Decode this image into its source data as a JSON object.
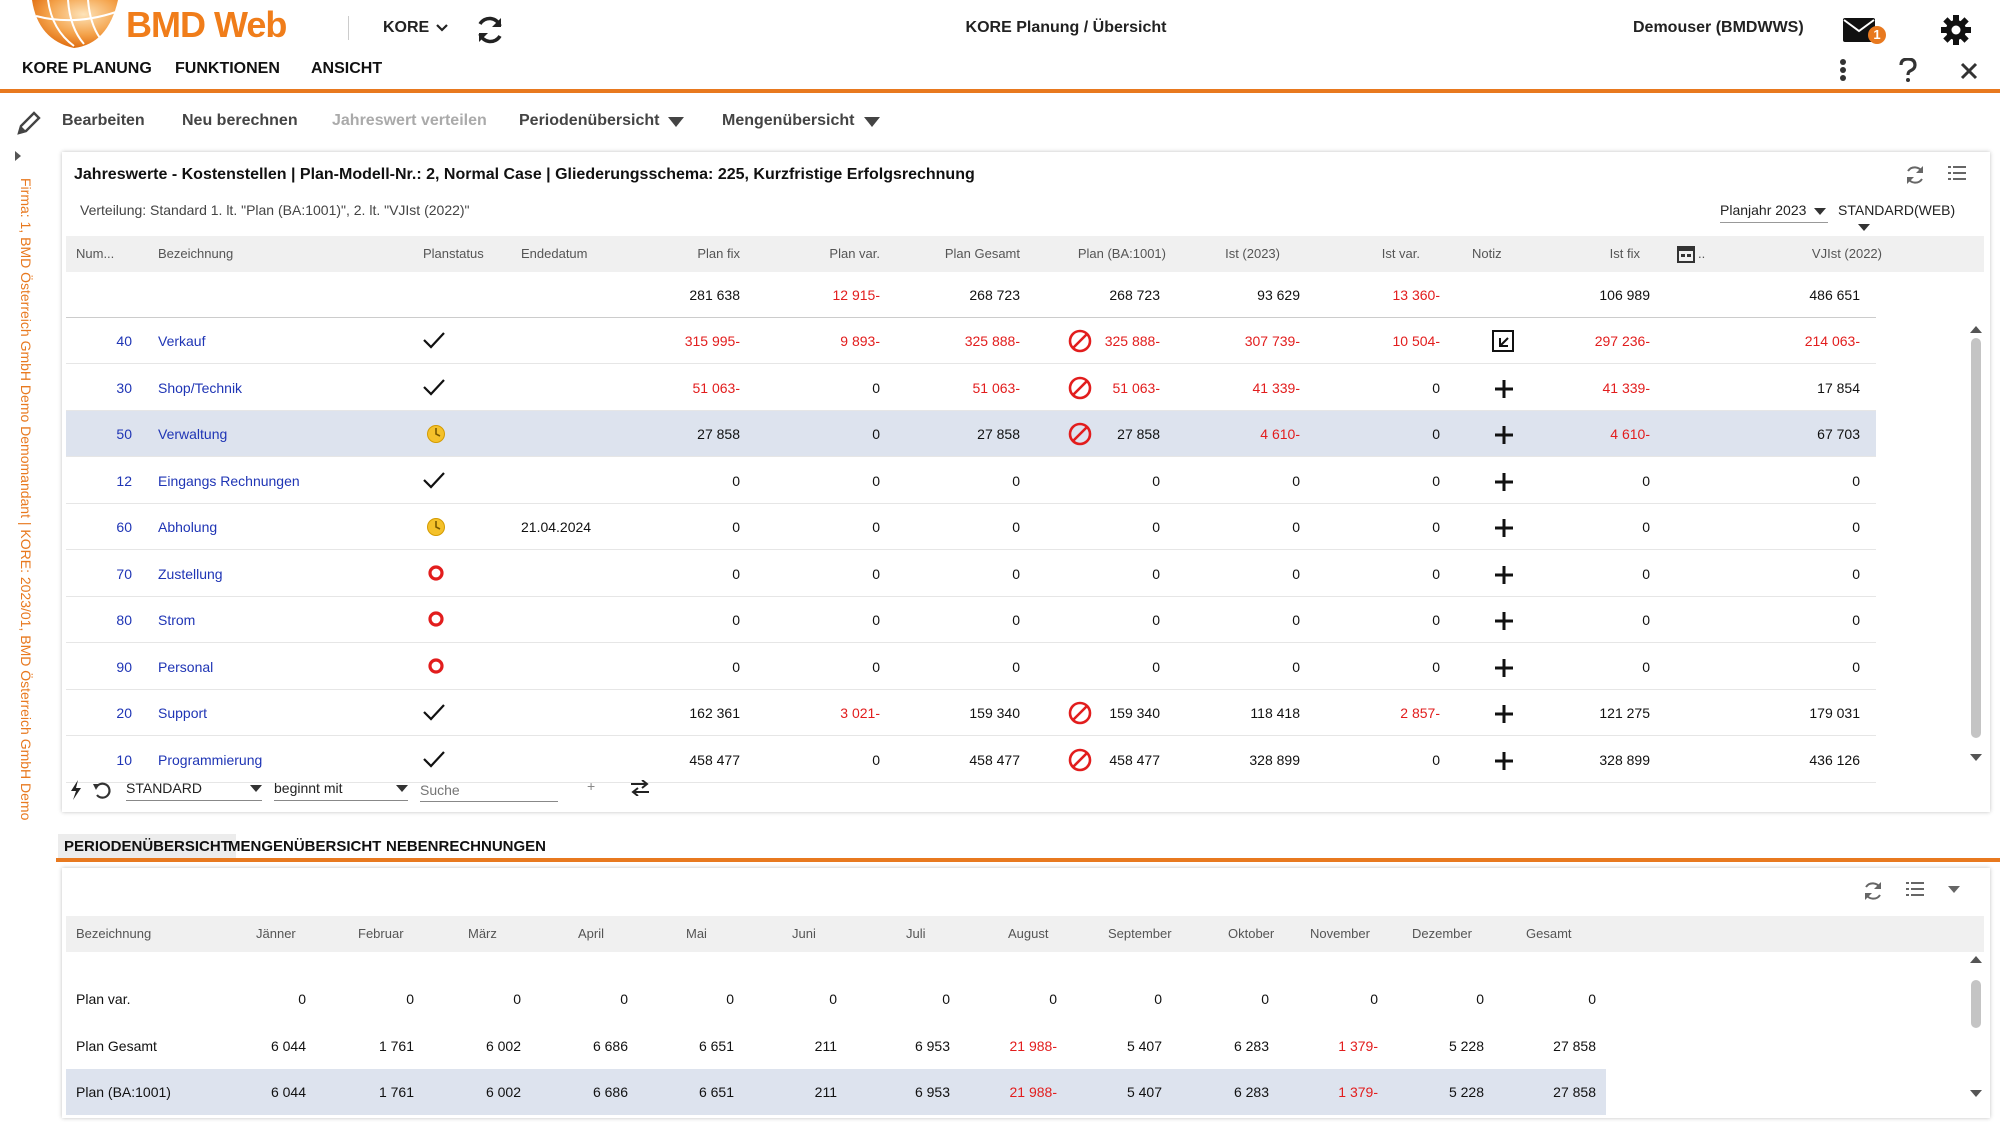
{
  "header": {
    "logo_text": "BMD Web",
    "company_dropdown": "KORE",
    "app_title": "KORE Planung / Übersicht",
    "user": "Demouser (BMDWWS)",
    "mail_badge": "1",
    "menu": [
      "KORE PLANUNG",
      "FUNKTIONEN",
      "ANSICHT"
    ]
  },
  "toolbar": {
    "items": [
      "Bearbeiten",
      "Neu berechnen",
      "Jahreswert verteilen",
      "Periodenübersicht",
      "Mengenübersicht"
    ]
  },
  "sidebar_text": "Firma: 1, BMD Österreich GmbH Demo Demomandant | KORE: 2023/01, BMD Österreich GmbH Demo",
  "panel1": {
    "title": "Jahreswerte - Kostenstellen | Plan-Modell-Nr.: 2, Normal Case | Gliederungsschema: 225, Kurzfristige Erfolgsrechnung",
    "subtitle": "Verteilung: Standard 1. lt. \"Plan (BA:1001)\", 2. lt. \"VJIst (2022)\"",
    "year_select": "Planjahr 2023",
    "layout_select": "STANDARD(WEB)",
    "columns": [
      "Num...",
      "Bezeichnung",
      "Planstatus",
      "Endedatum",
      "Plan fix",
      "Plan var.",
      "Plan Gesamt",
      "Plan (BA:1001)",
      "Ist (2023)",
      "Ist var.",
      "Notiz",
      "Ist fix",
      "",
      "VJIst (2022)"
    ],
    "totals": {
      "plan_fix": "281 638",
      "plan_var": "12 915-",
      "plan_gesamt": "268 723",
      "plan_ba": "268 723",
      "ist": "93 629",
      "ist_var": "13 360-",
      "ist_fix": "106 989",
      "vjist": "486 651"
    },
    "rows": [
      {
        "num": "40",
        "name": "Verkauf",
        "status": "check",
        "date": "",
        "plan_fix": "315 995-",
        "plan_var": "9 893-",
        "plan_gesamt": "325 888-",
        "plan_ba": "325 888-",
        "ba_icon": true,
        "ist": "307 739-",
        "ist_var": "10 504-",
        "notiz": "note",
        "ist_fix": "297 236-",
        "vjist": "214 063-"
      },
      {
        "num": "30",
        "name": "Shop/Technik",
        "status": "check",
        "date": "",
        "plan_fix": "51 063-",
        "plan_var": "0",
        "plan_gesamt": "51 063-",
        "plan_ba": "51 063-",
        "ba_icon": true,
        "ist": "41 339-",
        "ist_var": "0",
        "notiz": "plus",
        "ist_fix": "41 339-",
        "vjist": "17 854"
      },
      {
        "num": "50",
        "name": "Verwaltung",
        "status": "clock",
        "date": "",
        "plan_fix": "27 858",
        "plan_var": "0",
        "plan_gesamt": "27 858",
        "plan_ba": "27 858",
        "ba_icon": true,
        "ist": "4 610-",
        "ist_var": "0",
        "notiz": "plus",
        "ist_fix": "4 610-",
        "vjist": "67 703",
        "selected": true
      },
      {
        "num": "12",
        "name": "Eingangs Rechnungen",
        "status": "check",
        "date": "",
        "plan_fix": "0",
        "plan_var": "0",
        "plan_gesamt": "0",
        "plan_ba": "0",
        "ba_icon": false,
        "ist": "0",
        "ist_var": "0",
        "notiz": "plus",
        "ist_fix": "0",
        "vjist": "0"
      },
      {
        "num": "60",
        "name": "Abholung",
        "status": "clock",
        "date": "21.04.2024",
        "plan_fix": "0",
        "plan_var": "0",
        "plan_gesamt": "0",
        "plan_ba": "0",
        "ba_icon": false,
        "ist": "0",
        "ist_var": "0",
        "notiz": "plus",
        "ist_fix": "0",
        "vjist": "0"
      },
      {
        "num": "70",
        "name": "Zustellung",
        "status": "circle",
        "date": "",
        "plan_fix": "0",
        "plan_var": "0",
        "plan_gesamt": "0",
        "plan_ba": "0",
        "ba_icon": false,
        "ist": "0",
        "ist_var": "0",
        "notiz": "plus",
        "ist_fix": "0",
        "vjist": "0"
      },
      {
        "num": "80",
        "name": "Strom",
        "status": "circle",
        "date": "",
        "plan_fix": "0",
        "plan_var": "0",
        "plan_gesamt": "0",
        "plan_ba": "0",
        "ba_icon": false,
        "ist": "0",
        "ist_var": "0",
        "notiz": "plus",
        "ist_fix": "0",
        "vjist": "0"
      },
      {
        "num": "90",
        "name": "Personal",
        "status": "circle",
        "date": "",
        "plan_fix": "0",
        "plan_var": "0",
        "plan_gesamt": "0",
        "plan_ba": "0",
        "ba_icon": false,
        "ist": "0",
        "ist_var": "0",
        "notiz": "plus",
        "ist_fix": "0",
        "vjist": "0"
      },
      {
        "num": "20",
        "name": "Support",
        "status": "check",
        "date": "",
        "plan_fix": "162 361",
        "plan_var": "3 021-",
        "plan_gesamt": "159 340",
        "plan_ba": "159 340",
        "ba_icon": true,
        "ist": "118 418",
        "ist_var": "2 857-",
        "notiz": "plus",
        "ist_fix": "121 275",
        "vjist": "179 031"
      },
      {
        "num": "10",
        "name": "Programmierung",
        "status": "check",
        "date": "",
        "plan_fix": "458 477",
        "plan_var": "0",
        "plan_gesamt": "458 477",
        "plan_ba": "458 477",
        "ba_icon": true,
        "ist": "328 899",
        "ist_var": "0",
        "notiz": "plus",
        "ist_fix": "328 899",
        "vjist": "436 126"
      }
    ],
    "filter": {
      "layout": "STANDARD",
      "operator": "beginnt mit",
      "search_placeholder": "Suche"
    }
  },
  "tabs": [
    "PERIODENÜBERSICHT",
    "MENGENÜBERSICHT",
    "NEBENRECHNUNGEN"
  ],
  "panel2": {
    "columns": [
      "Bezeichnung",
      "Jänner",
      "Februar",
      "März",
      "April",
      "Mai",
      "Juni",
      "Juli",
      "August",
      "September",
      "Oktober",
      "November",
      "Dezember",
      "Gesamt"
    ],
    "rows": [
      {
        "label": "Plan var.",
        "values": [
          "0",
          "0",
          "0",
          "0",
          "0",
          "0",
          "0",
          "0",
          "0",
          "0",
          "0",
          "0",
          "0"
        ]
      },
      {
        "label": "Plan Gesamt",
        "values": [
          "6 044",
          "1 761",
          "6 002",
          "6 686",
          "6 651",
          "211",
          "6 953",
          "21 988-",
          "5 407",
          "6 283",
          "1 379-",
          "5 228",
          "27 858"
        ]
      },
      {
        "label": "Plan (BA:1001)",
        "values": [
          "6 044",
          "1 761",
          "6 002",
          "6 686",
          "6 651",
          "211",
          "6 953",
          "21 988-",
          "5 407",
          "6 283",
          "1 379-",
          "5 228",
          "27 858"
        ],
        "selected": true
      }
    ]
  },
  "colors": {
    "accent": "#e8791f",
    "negative": "#e21d1d",
    "link": "#1f35b5",
    "selected_row": "#dde3ee"
  }
}
